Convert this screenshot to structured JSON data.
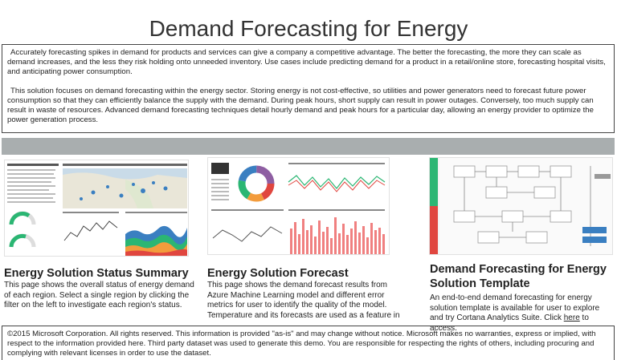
{
  "page": {
    "title": "Demand Forecasting for Energy"
  },
  "intro": {
    "paragraph1": "Accurately forecasting spikes in demand for products and services can give a company a competitive advantage. The better the forecasting, the more they can scale as demand increases, and the less they risk holding onto unneeded inventory. Use cases include predicting demand for a product in a retail/online store, forecasting hospital visits, and anticipating power consumption.",
    "paragraph2": "This solution focuses on demand forecasting within the energy sector. Storing energy is not cost-effective, so utilities and power generators need to forecast future power consumption so that they can efficiently balance the supply with the demand. During peak hours, short supply can result in power outages. Conversely, too much supply can result in waste of resources. Advanced demand forecasting techniques detail hourly demand and peak hours for a particular day, allowing an energy provider to optimize the power generation process."
  },
  "cards": [
    {
      "title": "Energy Solution Status Summary",
      "text": "This page shows the overall status of energy demand of each region. Select a single region by clicking the filter on the left to investigate each region's status."
    },
    {
      "title": "Energy Solution Forecast",
      "text": "This page shows the demand forecast results from Azure Machine Learning model and different error metrics for user to identify the quality of the model. Temperature and its forecasts are used as a feature in the machine learning"
    },
    {
      "title": "Demand Forecasting for Energy Solution Template",
      "text_before_link": "An end-to-end demand forecasting for energy solution template is available for user to explore and try Cortana Analytics Suite. Click ",
      "link_text": "here",
      "text_after_link": " to access."
    }
  ],
  "footer": {
    "text": "©2015 Microsoft Corporation. All rights reserved.  This information is provided \"as-is\" and may change without notice. Microsoft makes no warranties, express or implied, with respect to the information provided here.  Third party dataset was used to generate this demo.  You are responsible for respecting the rights of others, including procuring and complying with relevant licenses in order to use the dataset."
  },
  "colors": {
    "divider_bar": "#a9aeaf",
    "border": "#444444",
    "map_water": "#c9dbe8",
    "accent_green": "#2bb673",
    "accent_red": "#e0463f",
    "accent_blue": "#3a7fc1",
    "accent_orange": "#f39c3c"
  },
  "icons": {
    "dashboard_thumbnail_1": "status-summary-dashboard-image",
    "dashboard_thumbnail_2": "forecast-dashboard-image",
    "dashboard_thumbnail_3": "solution-template-diagram-image"
  }
}
